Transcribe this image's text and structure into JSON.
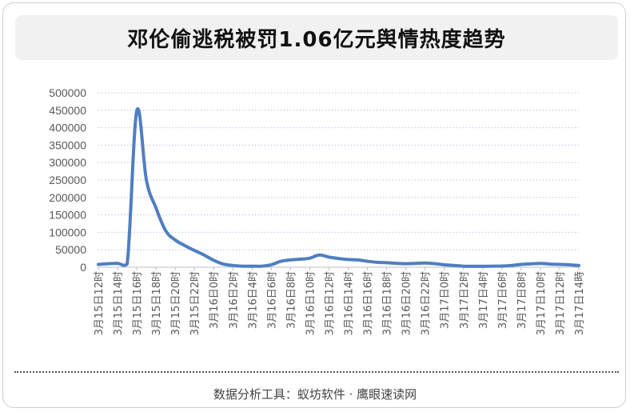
{
  "title": "邓伦偷逃税被罚1.06亿元舆情热度趋势",
  "footer": "数据分析工具：蚁坊软件 · 鹰眼速读网",
  "colors": {
    "line": "#4f7ec1",
    "grid": "#b4c6e2",
    "axis": "#bfbfbf",
    "tick": "#595959"
  },
  "chart_data": {
    "type": "line",
    "title": "邓伦偷逃税被罚1.06亿元舆情热度趋势",
    "xlabel": "",
    "ylabel": "",
    "ylim": [
      0,
      500000
    ],
    "yticks": [
      0,
      50000,
      100000,
      150000,
      200000,
      250000,
      300000,
      350000,
      400000,
      450000,
      500000
    ],
    "grid": "horizontal-dotted",
    "x_tick_labels": [
      "3月15日12时",
      "3月15日14时",
      "3月15日16时",
      "3月15日18时",
      "3月15日20时",
      "3月15日22时",
      "3月16日0时",
      "3月16日2时",
      "3月16日4时",
      "3月16日6时",
      "3月16日8时",
      "3月16日10时",
      "3月16日12时",
      "3月16日14时",
      "3月16日16时",
      "3月16日18时",
      "3月16日20时",
      "3月16日22时",
      "3月17日0时",
      "3月17日2时",
      "3月17日4时",
      "3月17日6时",
      "3月17日8时",
      "3月17日10时",
      "3月17日12时",
      "3月17日14時"
    ],
    "x": [
      "3月15日12时",
      "3月15日13时",
      "3月15日14时",
      "3月15日15时",
      "3月15日16时",
      "3月15日17时",
      "3月15日18时",
      "3月15日19时",
      "3月15日20时",
      "3月15日21时",
      "3月15日22时",
      "3月15日23时",
      "3月16日0时",
      "3月16日1时",
      "3月16日2时",
      "3月16日3时",
      "3月16日4时",
      "3月16日5时",
      "3月16日6时",
      "3月16日7时",
      "3月16日8时",
      "3月16日9时",
      "3月16日10时",
      "3月16日11时",
      "3月16日12时",
      "3月16日13时",
      "3月16日14时",
      "3月16日15时",
      "3月16日16时",
      "3月16日17时",
      "3月16日18时",
      "3月16日19时",
      "3月16日20时",
      "3月16日21时",
      "3月16日22时",
      "3月16日23时",
      "3月17日0时",
      "3月17日1时",
      "3月17日2时",
      "3月17日3时",
      "3月17日4时",
      "3月17日5时",
      "3月17日6时",
      "3月17日7时",
      "3月17日8时",
      "3月17日9时",
      "3月17日10时",
      "3月17日11时",
      "3月17日12时",
      "3月17日13时",
      "3月17日14时"
    ],
    "series": [
      {
        "values": [
          8000,
          10000,
          11000,
          9000,
          448000,
          250000,
          170000,
          105000,
          78000,
          62000,
          48000,
          35000,
          20000,
          9000,
          5000,
          3000,
          3000,
          3000,
          7000,
          17000,
          21000,
          23000,
          26000,
          35000,
          29000,
          25000,
          22000,
          21000,
          17000,
          14000,
          13000,
          11000,
          10000,
          11000,
          12000,
          10000,
          7000,
          5000,
          3000,
          2500,
          2500,
          3000,
          3500,
          5000,
          8000,
          9500,
          11000,
          9000,
          8000,
          7000,
          5000
        ]
      }
    ]
  }
}
